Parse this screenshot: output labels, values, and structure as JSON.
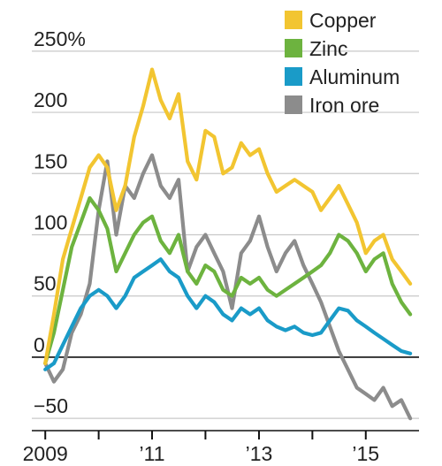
{
  "chart_data": {
    "type": "line",
    "title": "",
    "xlabel": "",
    "ylabel": "",
    "y_unit": "%",
    "ylim": [
      -60,
      260
    ],
    "xlim": [
      "2008-10-01",
      "2015-12-31"
    ],
    "y_ticks": [
      {
        "value": 250,
        "label": "250%"
      },
      {
        "value": 200,
        "label": "200"
      },
      {
        "value": 150,
        "label": "150"
      },
      {
        "value": 100,
        "label": "100"
      },
      {
        "value": 50,
        "label": "50"
      },
      {
        "value": 0,
        "label": "0"
      },
      {
        "value": -50,
        "label": "−50"
      }
    ],
    "x_ticks": [
      {
        "value": "2009-01-01",
        "label": "2009"
      },
      {
        "value": "2010-01-01",
        "label": ""
      },
      {
        "value": "2011-01-01",
        "label": "’11"
      },
      {
        "value": "2012-01-01",
        "label": ""
      },
      {
        "value": "2013-01-01",
        "label": "’13"
      },
      {
        "value": "2014-01-01",
        "label": ""
      },
      {
        "value": "2015-01-01",
        "label": "’15"
      }
    ],
    "grid": true,
    "legend_position": "top-right",
    "series": [
      {
        "name": "Copper",
        "color": "#f2c531",
        "points": [
          [
            "2009-01-01",
            -5
          ],
          [
            "2009-03-01",
            35
          ],
          [
            "2009-05-01",
            80
          ],
          [
            "2009-07-01",
            105
          ],
          [
            "2009-09-01",
            130
          ],
          [
            "2009-11-01",
            155
          ],
          [
            "2010-01-01",
            165
          ],
          [
            "2010-03-01",
            155
          ],
          [
            "2010-05-01",
            120
          ],
          [
            "2010-07-01",
            140
          ],
          [
            "2010-09-01",
            180
          ],
          [
            "2010-11-01",
            205
          ],
          [
            "2011-01-01",
            235
          ],
          [
            "2011-03-01",
            210
          ],
          [
            "2011-05-01",
            195
          ],
          [
            "2011-07-01",
            215
          ],
          [
            "2011-09-01",
            160
          ],
          [
            "2011-11-01",
            145
          ],
          [
            "2012-01-01",
            185
          ],
          [
            "2012-03-01",
            180
          ],
          [
            "2012-05-01",
            150
          ],
          [
            "2012-07-01",
            155
          ],
          [
            "2012-09-01",
            175
          ],
          [
            "2012-11-01",
            165
          ],
          [
            "2013-01-01",
            170
          ],
          [
            "2013-03-01",
            150
          ],
          [
            "2013-05-01",
            135
          ],
          [
            "2013-07-01",
            140
          ],
          [
            "2013-09-01",
            145
          ],
          [
            "2013-11-01",
            140
          ],
          [
            "2014-01-01",
            135
          ],
          [
            "2014-03-01",
            120
          ],
          [
            "2014-05-01",
            130
          ],
          [
            "2014-07-01",
            140
          ],
          [
            "2014-09-01",
            125
          ],
          [
            "2014-11-01",
            110
          ],
          [
            "2015-01-01",
            85
          ],
          [
            "2015-03-01",
            95
          ],
          [
            "2015-05-01",
            100
          ],
          [
            "2015-07-01",
            80
          ],
          [
            "2015-09-01",
            70
          ],
          [
            "2015-11-01",
            60
          ]
        ]
      },
      {
        "name": "Zinc",
        "color": "#6db33f",
        "points": [
          [
            "2009-01-01",
            -5
          ],
          [
            "2009-03-01",
            20
          ],
          [
            "2009-05-01",
            55
          ],
          [
            "2009-07-01",
            90
          ],
          [
            "2009-09-01",
            110
          ],
          [
            "2009-11-01",
            130
          ],
          [
            "2010-01-01",
            120
          ],
          [
            "2010-03-01",
            105
          ],
          [
            "2010-05-01",
            70
          ],
          [
            "2010-07-01",
            85
          ],
          [
            "2010-09-01",
            100
          ],
          [
            "2010-11-01",
            110
          ],
          [
            "2011-01-01",
            115
          ],
          [
            "2011-03-01",
            95
          ],
          [
            "2011-05-01",
            85
          ],
          [
            "2011-07-01",
            100
          ],
          [
            "2011-09-01",
            70
          ],
          [
            "2011-11-01",
            60
          ],
          [
            "2012-01-01",
            75
          ],
          [
            "2012-03-01",
            70
          ],
          [
            "2012-05-01",
            55
          ],
          [
            "2012-07-01",
            50
          ],
          [
            "2012-09-01",
            65
          ],
          [
            "2012-11-01",
            60
          ],
          [
            "2013-01-01",
            65
          ],
          [
            "2013-03-01",
            55
          ],
          [
            "2013-05-01",
            50
          ],
          [
            "2013-07-01",
            55
          ],
          [
            "2013-09-01",
            60
          ],
          [
            "2013-11-01",
            65
          ],
          [
            "2014-01-01",
            70
          ],
          [
            "2014-03-01",
            75
          ],
          [
            "2014-05-01",
            85
          ],
          [
            "2014-07-01",
            100
          ],
          [
            "2014-09-01",
            95
          ],
          [
            "2014-11-01",
            85
          ],
          [
            "2015-01-01",
            70
          ],
          [
            "2015-03-01",
            80
          ],
          [
            "2015-05-01",
            85
          ],
          [
            "2015-07-01",
            60
          ],
          [
            "2015-09-01",
            45
          ],
          [
            "2015-11-01",
            35
          ]
        ]
      },
      {
        "name": "Aluminum",
        "color": "#1a9bc8",
        "points": [
          [
            "2009-01-01",
            -10
          ],
          [
            "2009-03-01",
            -5
          ],
          [
            "2009-05-01",
            10
          ],
          [
            "2009-07-01",
            25
          ],
          [
            "2009-09-01",
            40
          ],
          [
            "2009-11-01",
            50
          ],
          [
            "2010-01-01",
            55
          ],
          [
            "2010-03-01",
            50
          ],
          [
            "2010-05-01",
            40
          ],
          [
            "2010-07-01",
            50
          ],
          [
            "2010-09-01",
            65
          ],
          [
            "2010-11-01",
            70
          ],
          [
            "2011-01-01",
            75
          ],
          [
            "2011-03-01",
            80
          ],
          [
            "2011-05-01",
            70
          ],
          [
            "2011-07-01",
            65
          ],
          [
            "2011-09-01",
            50
          ],
          [
            "2011-11-01",
            40
          ],
          [
            "2012-01-01",
            50
          ],
          [
            "2012-03-01",
            45
          ],
          [
            "2012-05-01",
            35
          ],
          [
            "2012-07-01",
            30
          ],
          [
            "2012-09-01",
            40
          ],
          [
            "2012-11-01",
            35
          ],
          [
            "2013-01-01",
            40
          ],
          [
            "2013-03-01",
            30
          ],
          [
            "2013-05-01",
            25
          ],
          [
            "2013-07-01",
            22
          ],
          [
            "2013-09-01",
            25
          ],
          [
            "2013-11-01",
            20
          ],
          [
            "2014-01-01",
            18
          ],
          [
            "2014-03-01",
            20
          ],
          [
            "2014-05-01",
            30
          ],
          [
            "2014-07-01",
            40
          ],
          [
            "2014-09-01",
            38
          ],
          [
            "2014-11-01",
            30
          ],
          [
            "2015-01-01",
            25
          ],
          [
            "2015-03-01",
            20
          ],
          [
            "2015-05-01",
            15
          ],
          [
            "2015-07-01",
            10
          ],
          [
            "2015-09-01",
            5
          ],
          [
            "2015-11-01",
            3
          ]
        ]
      },
      {
        "name": "Iron ore",
        "color": "#8c8c8c",
        "points": [
          [
            "2009-01-01",
            -5
          ],
          [
            "2009-03-01",
            -20
          ],
          [
            "2009-05-01",
            -10
          ],
          [
            "2009-07-01",
            20
          ],
          [
            "2009-09-01",
            35
          ],
          [
            "2009-11-01",
            60
          ],
          [
            "2010-01-01",
            120
          ],
          [
            "2010-03-01",
            160
          ],
          [
            "2010-05-01",
            100
          ],
          [
            "2010-07-01",
            140
          ],
          [
            "2010-09-01",
            130
          ],
          [
            "2010-11-01",
            150
          ],
          [
            "2011-01-01",
            165
          ],
          [
            "2011-03-01",
            140
          ],
          [
            "2011-05-01",
            130
          ],
          [
            "2011-07-01",
            145
          ],
          [
            "2011-09-01",
            70
          ],
          [
            "2011-11-01",
            90
          ],
          [
            "2012-01-01",
            100
          ],
          [
            "2012-03-01",
            85
          ],
          [
            "2012-05-01",
            70
          ],
          [
            "2012-07-01",
            40
          ],
          [
            "2012-09-01",
            85
          ],
          [
            "2012-11-01",
            95
          ],
          [
            "2013-01-01",
            115
          ],
          [
            "2013-03-01",
            90
          ],
          [
            "2013-05-01",
            70
          ],
          [
            "2013-07-01",
            85
          ],
          [
            "2013-09-01",
            95
          ],
          [
            "2013-11-01",
            75
          ],
          [
            "2014-01-01",
            60
          ],
          [
            "2014-03-01",
            45
          ],
          [
            "2014-05-01",
            25
          ],
          [
            "2014-07-01",
            5
          ],
          [
            "2014-09-01",
            -10
          ],
          [
            "2014-11-01",
            -25
          ],
          [
            "2015-01-01",
            -30
          ],
          [
            "2015-03-01",
            -35
          ],
          [
            "2015-05-01",
            -25
          ],
          [
            "2015-07-01",
            -40
          ],
          [
            "2015-09-01",
            -35
          ],
          [
            "2015-11-01",
            -50
          ]
        ]
      }
    ]
  }
}
